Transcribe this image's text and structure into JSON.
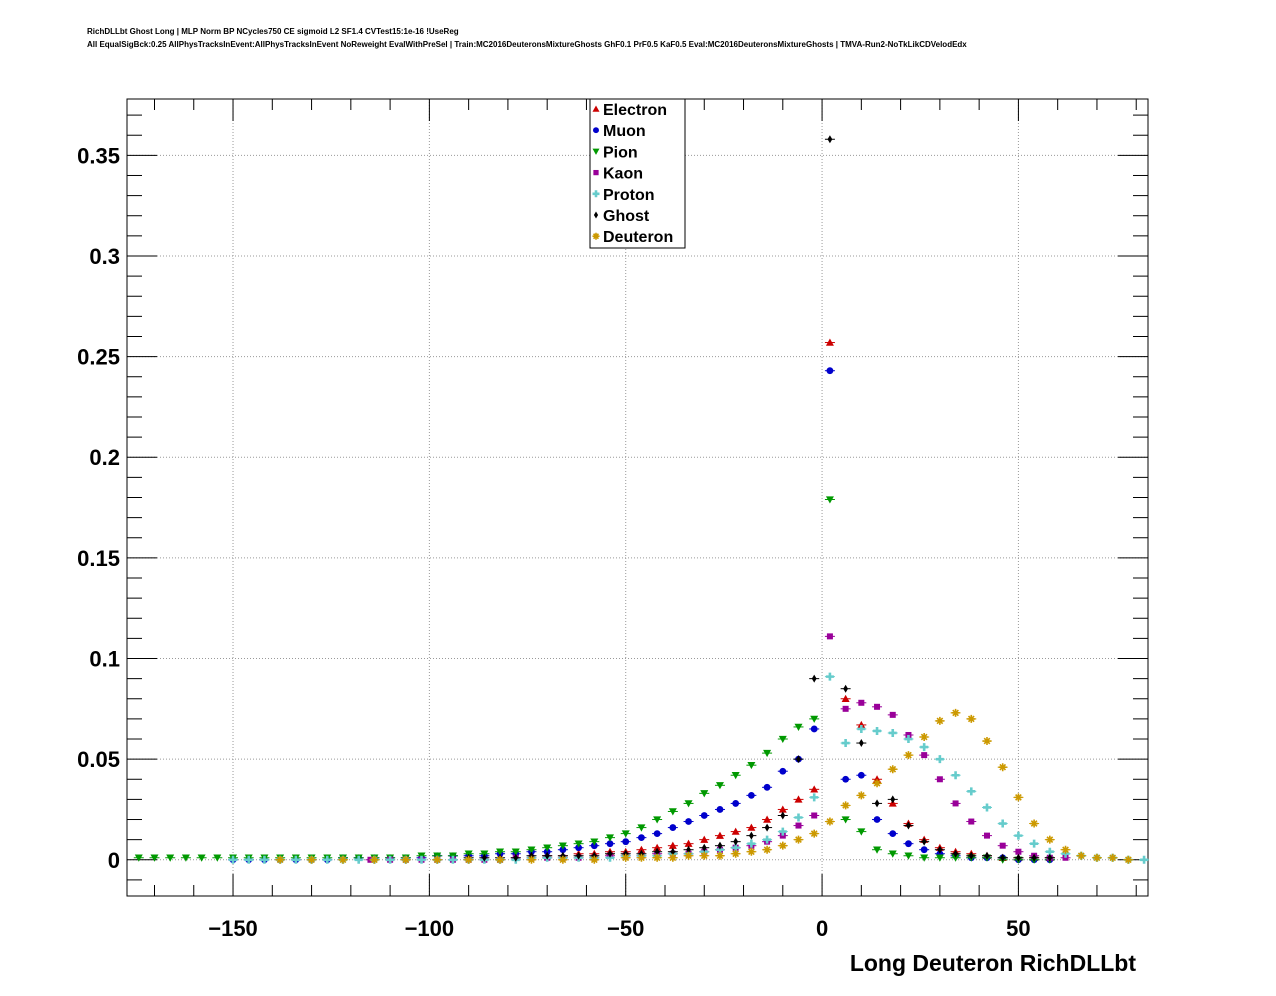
{
  "header": {
    "title_line1": "RichDLLbt Ghost Long | MLP Norm BP NCycles750 CE sigmoid L2 SF1.4 CVTest15:1e-16 !UseReg",
    "title_line2": "All EqualSigBck:0.25 AllPhysTracksInEvent:AllPhysTracksInEvent NoReweight EvalWithPreSel | Train:MC2016DeuteronsMixtureGhosts GhF0.1 PrF0.5 KaF0.5 Eval:MC2016DeuteronsMixtureGhosts | TMVA-Run2-NoTkLikCDVelodEdx"
  },
  "chart_data": {
    "type": "scatter",
    "xlabel": "Long Deuteron RichDLLbt",
    "ylabel": "",
    "xlim": [
      -177,
      83
    ],
    "ylim": [
      -0.018,
      0.378
    ],
    "grid": true,
    "legend_position": "top-center",
    "x_ticks": [
      -150,
      -100,
      -50,
      0,
      50
    ],
    "x_tick_labels": [
      "−150",
      "−100",
      "−50",
      "0",
      "50"
    ],
    "y_ticks": [
      0,
      0.05,
      0.1,
      0.15,
      0.2,
      0.25,
      0.3,
      0.35
    ],
    "y_tick_labels": [
      "0",
      "0.05",
      "0.1",
      "0.15",
      "0.2",
      "0.25",
      "0.3",
      "0.35"
    ],
    "series": [
      {
        "name": "Electron",
        "color": "#cc0000",
        "marker": "triangle-up",
        "x": [
          -70,
          -66,
          -62,
          -58,
          -54,
          -50,
          -46,
          -42,
          -38,
          -34,
          -30,
          -26,
          -22,
          -18,
          -14,
          -10,
          -6,
          -2,
          2,
          6,
          10,
          14,
          18,
          22,
          26,
          30,
          34,
          38,
          42,
          46,
          50,
          54,
          58
        ],
        "y": [
          0.002,
          0.002,
          0.003,
          0.003,
          0.004,
          0.004,
          0.005,
          0.006,
          0.007,
          0.008,
          0.01,
          0.012,
          0.014,
          0.016,
          0.02,
          0.025,
          0.03,
          0.035,
          0.257,
          0.08,
          0.067,
          0.04,
          0.028,
          0.018,
          0.01,
          0.006,
          0.004,
          0.003,
          0.002,
          0.001,
          0.001,
          0.001,
          0.001
        ]
      },
      {
        "name": "Muon",
        "color": "#0000cc",
        "marker": "circle",
        "x": [
          -150,
          -146,
          -142,
          -138,
          -134,
          -130,
          -126,
          -122,
          -118,
          -114,
          -110,
          -106,
          -102,
          -98,
          -94,
          -90,
          -86,
          -82,
          -78,
          -74,
          -70,
          -66,
          -62,
          -58,
          -54,
          -50,
          -46,
          -42,
          -38,
          -34,
          -30,
          -26,
          -22,
          -18,
          -14,
          -10,
          -6,
          -2,
          2,
          6,
          10,
          14,
          18,
          22,
          26,
          30,
          34,
          38,
          42,
          46,
          50,
          54,
          58
        ],
        "y": [
          0,
          0,
          0,
          0,
          0,
          0,
          0,
          0.001,
          0.001,
          0.001,
          0.001,
          0.001,
          0.001,
          0.002,
          0.002,
          0.002,
          0.002,
          0.003,
          0.003,
          0.004,
          0.004,
          0.005,
          0.006,
          0.007,
          0.008,
          0.009,
          0.011,
          0.013,
          0.016,
          0.019,
          0.022,
          0.025,
          0.028,
          0.032,
          0.036,
          0.044,
          0.05,
          0.065,
          0.243,
          0.04,
          0.042,
          0.02,
          0.013,
          0.008,
          0.005,
          0.003,
          0.002,
          0.001,
          0.001,
          0.001,
          0,
          0,
          0
        ]
      },
      {
        "name": "Pion",
        "color": "#009900",
        "marker": "triangle-down",
        "x": [
          -174,
          -170,
          -166,
          -162,
          -158,
          -154,
          -150,
          -146,
          -142,
          -138,
          -134,
          -130,
          -126,
          -122,
          -118,
          -114,
          -110,
          -106,
          -102,
          -98,
          -94,
          -90,
          -86,
          -82,
          -78,
          -74,
          -70,
          -66,
          -62,
          -58,
          -54,
          -50,
          -46,
          -42,
          -38,
          -34,
          -30,
          -26,
          -22,
          -18,
          -14,
          -10,
          -6,
          -2,
          2,
          6,
          10,
          14,
          18,
          22,
          26,
          30,
          34,
          38,
          42,
          46,
          50,
          54,
          58
        ],
        "y": [
          0.001,
          0.001,
          0.001,
          0.001,
          0.001,
          0.001,
          0.001,
          0.001,
          0.001,
          0.001,
          0.001,
          0.001,
          0.001,
          0.001,
          0.001,
          0.001,
          0.001,
          0.001,
          0.002,
          0.002,
          0.002,
          0.003,
          0.003,
          0.004,
          0.004,
          0.005,
          0.006,
          0.007,
          0.008,
          0.009,
          0.011,
          0.013,
          0.016,
          0.02,
          0.024,
          0.028,
          0.033,
          0.037,
          0.042,
          0.047,
          0.053,
          0.06,
          0.066,
          0.07,
          0.179,
          0.02,
          0.014,
          0.005,
          0.003,
          0.002,
          0.001,
          0.001,
          0.001,
          0.001,
          0.001,
          0,
          0,
          0,
          0
        ]
      },
      {
        "name": "Kaon",
        "color": "#990099",
        "marker": "square",
        "x": [
          -115,
          -110,
          -106,
          -102,
          -98,
          -94,
          -90,
          -86,
          -82,
          -78,
          -74,
          -70,
          -66,
          -62,
          -58,
          -54,
          -50,
          -46,
          -42,
          -38,
          -34,
          -30,
          -26,
          -22,
          -18,
          -14,
          -10,
          -6,
          -2,
          2,
          6,
          10,
          14,
          18,
          22,
          26,
          30,
          34,
          38,
          42,
          46,
          50,
          54,
          58,
          62
        ],
        "y": [
          0,
          0,
          0,
          0,
          0,
          0,
          0,
          0,
          0,
          0.001,
          0.001,
          0.001,
          0.001,
          0.001,
          0.001,
          0.002,
          0.002,
          0.002,
          0.003,
          0.003,
          0.003,
          0.004,
          0.005,
          0.006,
          0.007,
          0.009,
          0.012,
          0.017,
          0.022,
          0.111,
          0.075,
          0.078,
          0.076,
          0.072,
          0.062,
          0.052,
          0.04,
          0.028,
          0.019,
          0.012,
          0.007,
          0.004,
          0.002,
          0.001,
          0.001
        ]
      },
      {
        "name": "Proton",
        "color": "#66cccc",
        "marker": "cross",
        "x": [
          -150,
          -146,
          -142,
          -138,
          -134,
          -130,
          -126,
          -122,
          -118,
          -114,
          -110,
          -106,
          -102,
          -98,
          -94,
          -90,
          -86,
          -82,
          -78,
          -74,
          -70,
          -66,
          -62,
          -58,
          -54,
          -50,
          -46,
          -42,
          -38,
          -34,
          -30,
          -26,
          -22,
          -18,
          -14,
          -10,
          -6,
          -2,
          2,
          6,
          10,
          14,
          18,
          22,
          26,
          30,
          34,
          38,
          42,
          46,
          50,
          54,
          58,
          62,
          66,
          70,
          74,
          78,
          82
        ],
        "y": [
          0,
          0,
          0,
          0,
          0,
          0,
          0,
          0,
          0,
          0,
          0,
          0,
          0,
          0,
          0,
          0,
          0,
          0,
          0,
          0.001,
          0.001,
          0.001,
          0.001,
          0.001,
          0.001,
          0.002,
          0.002,
          0.002,
          0.003,
          0.003,
          0.004,
          0.005,
          0.006,
          0.008,
          0.01,
          0.014,
          0.021,
          0.031,
          0.091,
          0.058,
          0.065,
          0.064,
          0.063,
          0.06,
          0.056,
          0.05,
          0.042,
          0.034,
          0.026,
          0.018,
          0.012,
          0.008,
          0.004,
          0.003,
          0.002,
          0.001,
          0.001,
          0,
          0
        ]
      },
      {
        "name": "Ghost",
        "color": "#000000",
        "marker": "diamond",
        "x": [
          -90,
          -86,
          -82,
          -78,
          -74,
          -70,
          -66,
          -62,
          -58,
          -54,
          -50,
          -46,
          -42,
          -38,
          -34,
          -30,
          -26,
          -22,
          -18,
          -14,
          -10,
          -6,
          -2,
          2,
          6,
          10,
          14,
          18,
          22,
          26,
          30,
          34,
          38,
          42,
          46,
          50,
          54,
          58
        ],
        "y": [
          0.001,
          0.001,
          0.001,
          0.001,
          0.002,
          0.002,
          0.002,
          0.002,
          0.002,
          0.003,
          0.003,
          0.003,
          0.004,
          0.004,
          0.005,
          0.006,
          0.007,
          0.009,
          0.012,
          0.016,
          0.022,
          0.05,
          0.09,
          0.358,
          0.085,
          0.058,
          0.028,
          0.03,
          0.017,
          0.009,
          0.005,
          0.003,
          0.002,
          0.002,
          0.001,
          0.001,
          0.001,
          0.001
        ]
      },
      {
        "name": "Deuteron",
        "color": "#cc9900",
        "marker": "star",
        "x": [
          -138,
          -130,
          -122,
          -114,
          -106,
          -98,
          -90,
          -82,
          -74,
          -66,
          -58,
          -50,
          -46,
          -42,
          -38,
          -34,
          -30,
          -26,
          -22,
          -18,
          -14,
          -10,
          -6,
          -2,
          2,
          6,
          10,
          14,
          18,
          22,
          26,
          30,
          34,
          38,
          42,
          46,
          50,
          54,
          58,
          62,
          66,
          70,
          74,
          78
        ],
        "y": [
          0,
          0,
          0,
          0,
          0,
          0,
          0,
          0,
          0,
          0,
          0,
          0.001,
          0.001,
          0.001,
          0.001,
          0.002,
          0.002,
          0.002,
          0.003,
          0.004,
          0.005,
          0.007,
          0.01,
          0.013,
          0.019,
          0.027,
          0.032,
          0.038,
          0.045,
          0.052,
          0.061,
          0.069,
          0.073,
          0.07,
          0.059,
          0.046,
          0.031,
          0.018,
          0.01,
          0.005,
          0.002,
          0.001,
          0.001,
          0
        ]
      }
    ]
  }
}
